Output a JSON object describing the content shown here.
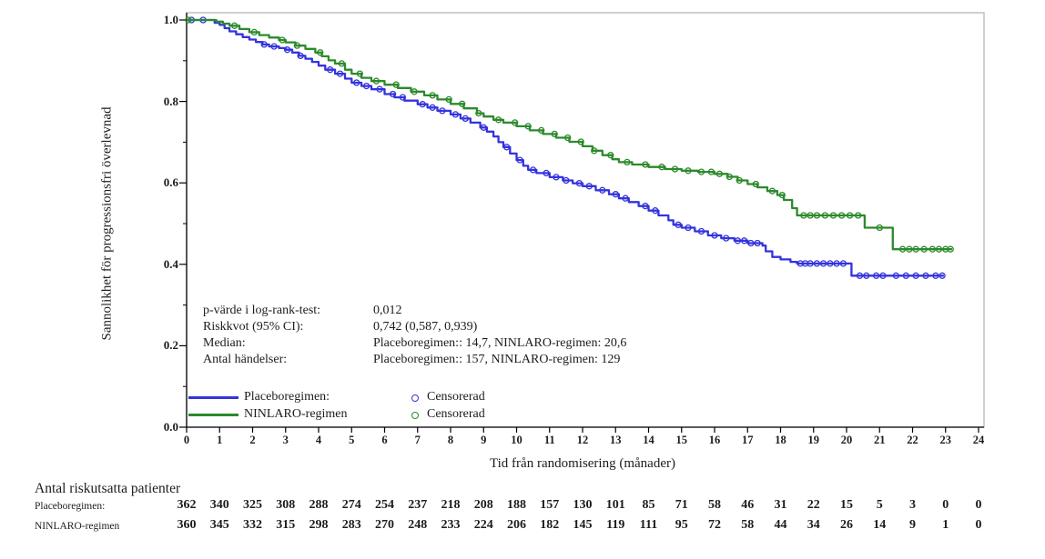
{
  "figure": {
    "y_axis_label": "Sannolikhet för progressionsfri överlevnad",
    "x_axis_label": "Tid från randomisering (månader)"
  },
  "stats": {
    "rows": [
      {
        "label": "p-värde i log-rank-test:",
        "value": "0,012"
      },
      {
        "label": "Riskkvot (95% CI):",
        "value": "0,742 (0,587, 0,939)"
      },
      {
        "label": "Median:",
        "value": "Placeboregimen:: 14,7, NINLARO-regimen: 20,6"
      },
      {
        "label": "Antal händelser:",
        "value": "Placeboregimen:: 157, NINLARO-regimen: 129"
      }
    ]
  },
  "legend": {
    "series": [
      {
        "label": "Placeboregimen:",
        "color": "#3333dd"
      },
      {
        "label": "NINLARO-regimen",
        "color": "#2b8a2b"
      }
    ],
    "censored": [
      {
        "label": "Censorerad",
        "color": "#3333dd"
      },
      {
        "label": "Censorerad",
        "color": "#2b8a2b"
      }
    ]
  },
  "chart_data": {
    "type": "line",
    "subtype": "kaplan-meier-step",
    "xlabel": "Tid från randomisering (månader)",
    "ylabel": "Sannolikhet för progressionsfri överlevnad",
    "x_range": [
      0,
      24
    ],
    "y_range": [
      0.0,
      1.0
    ],
    "x_ticks": [
      0,
      1,
      2,
      3,
      4,
      5,
      6,
      7,
      8,
      9,
      10,
      11,
      12,
      13,
      14,
      15,
      16,
      17,
      18,
      19,
      20,
      21,
      22,
      23,
      24
    ],
    "y_ticks": [
      0.0,
      0.2,
      0.4,
      0.6,
      0.8,
      1.0
    ],
    "y_minor_ticks": [
      0.1,
      0.3,
      0.5,
      0.7,
      0.9
    ],
    "grid": false,
    "legend_position": "inside-bottom-left",
    "p_value": 0.012,
    "hazard_ratio": 0.742,
    "hr_ci_95": [
      0.587,
      0.939
    ],
    "medians": {
      "Placeboregimen": 14.7,
      "NINLARO-regimen": 20.6
    },
    "events": {
      "Placeboregimen": 157,
      "NINLARO-regimen": 129
    },
    "series": [
      {
        "name": "Placeboregimen",
        "color": "#3333dd",
        "end_x": 22.95,
        "points": [
          [
            0,
            1.0
          ],
          [
            0.85,
            0.993
          ],
          [
            1.0,
            0.988
          ],
          [
            1.15,
            0.98
          ],
          [
            1.3,
            0.972
          ],
          [
            1.5,
            0.965
          ],
          [
            1.7,
            0.958
          ],
          [
            1.9,
            0.952
          ],
          [
            2.1,
            0.946
          ],
          [
            2.3,
            0.94
          ],
          [
            2.5,
            0.935
          ],
          [
            2.8,
            0.931
          ],
          [
            3.0,
            0.927
          ],
          [
            3.2,
            0.92
          ],
          [
            3.4,
            0.912
          ],
          [
            3.6,
            0.905
          ],
          [
            3.8,
            0.897
          ],
          [
            4.0,
            0.888
          ],
          [
            4.2,
            0.878
          ],
          [
            4.5,
            0.868
          ],
          [
            4.8,
            0.856
          ],
          [
            5.0,
            0.846
          ],
          [
            5.3,
            0.838
          ],
          [
            5.6,
            0.83
          ],
          [
            6.0,
            0.818
          ],
          [
            6.3,
            0.81
          ],
          [
            6.6,
            0.802
          ],
          [
            7.0,
            0.793
          ],
          [
            7.3,
            0.785
          ],
          [
            7.6,
            0.777
          ],
          [
            8.0,
            0.768
          ],
          [
            8.3,
            0.758
          ],
          [
            8.6,
            0.748
          ],
          [
            8.9,
            0.736
          ],
          [
            9.1,
            0.726
          ],
          [
            9.3,
            0.714
          ],
          [
            9.45,
            0.7
          ],
          [
            9.6,
            0.688
          ],
          [
            9.8,
            0.672
          ],
          [
            10.0,
            0.656
          ],
          [
            10.2,
            0.642
          ],
          [
            10.35,
            0.632
          ],
          [
            10.6,
            0.624
          ],
          [
            11.0,
            0.614
          ],
          [
            11.4,
            0.606
          ],
          [
            11.7,
            0.599
          ],
          [
            12.0,
            0.592
          ],
          [
            12.4,
            0.582
          ],
          [
            12.8,
            0.572
          ],
          [
            13.1,
            0.562
          ],
          [
            13.4,
            0.553
          ],
          [
            13.7,
            0.543
          ],
          [
            14.0,
            0.532
          ],
          [
            14.3,
            0.52
          ],
          [
            14.6,
            0.508
          ],
          [
            14.75,
            0.497
          ],
          [
            15.0,
            0.49
          ],
          [
            15.4,
            0.481
          ],
          [
            15.8,
            0.471
          ],
          [
            16.2,
            0.464
          ],
          [
            16.6,
            0.458
          ],
          [
            17.0,
            0.452
          ],
          [
            17.45,
            0.446
          ],
          [
            17.55,
            0.432
          ],
          [
            17.75,
            0.418
          ],
          [
            18.0,
            0.412
          ],
          [
            18.3,
            0.406
          ],
          [
            18.5,
            0.402
          ],
          [
            20.15,
            0.372
          ]
        ],
        "censored_x": [
          0.15,
          0.5,
          2.35,
          2.65,
          3.05,
          3.45,
          4.35,
          4.65,
          5.15,
          5.45,
          5.85,
          6.25,
          6.55,
          7.15,
          7.45,
          7.75,
          8.15,
          8.45,
          9.0,
          9.7,
          10.1,
          10.5,
          10.9,
          11.2,
          11.5,
          11.9,
          12.2,
          12.6,
          13.0,
          13.3,
          13.9,
          14.2,
          14.9,
          15.2,
          15.6,
          16.0,
          16.35,
          16.7,
          16.9,
          17.1,
          17.3,
          18.6,
          18.75,
          18.9,
          19.1,
          19.3,
          19.5,
          19.7,
          19.9,
          20.4,
          20.6,
          20.9,
          21.1,
          21.5,
          21.8,
          22.1,
          22.4,
          22.7,
          22.9
        ]
      },
      {
        "name": "NINLARO-regimen",
        "color": "#2b8a2b",
        "end_x": 23.2,
        "points": [
          [
            0,
            1.0
          ],
          [
            0.9,
            0.996
          ],
          [
            1.1,
            0.991
          ],
          [
            1.3,
            0.986
          ],
          [
            1.6,
            0.978
          ],
          [
            1.9,
            0.97
          ],
          [
            2.2,
            0.963
          ],
          [
            2.5,
            0.957
          ],
          [
            2.8,
            0.951
          ],
          [
            3.0,
            0.945
          ],
          [
            3.3,
            0.937
          ],
          [
            3.6,
            0.929
          ],
          [
            3.9,
            0.92
          ],
          [
            4.1,
            0.911
          ],
          [
            4.3,
            0.901
          ],
          [
            4.5,
            0.893
          ],
          [
            4.8,
            0.878
          ],
          [
            5.0,
            0.868
          ],
          [
            5.3,
            0.858
          ],
          [
            5.6,
            0.85
          ],
          [
            6.0,
            0.841
          ],
          [
            6.4,
            0.833
          ],
          [
            6.8,
            0.824
          ],
          [
            7.2,
            0.815
          ],
          [
            7.6,
            0.805
          ],
          [
            8.0,
            0.794
          ],
          [
            8.4,
            0.783
          ],
          [
            8.8,
            0.771
          ],
          [
            9.0,
            0.763
          ],
          [
            9.3,
            0.755
          ],
          [
            9.6,
            0.748
          ],
          [
            10.0,
            0.739
          ],
          [
            10.4,
            0.729
          ],
          [
            10.8,
            0.72
          ],
          [
            11.2,
            0.711
          ],
          [
            11.6,
            0.701
          ],
          [
            12.0,
            0.69
          ],
          [
            12.3,
            0.679
          ],
          [
            12.6,
            0.668
          ],
          [
            12.9,
            0.658
          ],
          [
            13.1,
            0.651
          ],
          [
            13.5,
            0.645
          ],
          [
            14.0,
            0.639
          ],
          [
            14.5,
            0.634
          ],
          [
            15.0,
            0.63
          ],
          [
            15.5,
            0.627
          ],
          [
            16.0,
            0.622
          ],
          [
            16.4,
            0.615
          ],
          [
            16.7,
            0.606
          ],
          [
            17.0,
            0.597
          ],
          [
            17.3,
            0.589
          ],
          [
            17.6,
            0.58
          ],
          [
            17.9,
            0.57
          ],
          [
            18.1,
            0.558
          ],
          [
            18.35,
            0.538
          ],
          [
            18.5,
            0.52
          ],
          [
            20.55,
            0.49
          ],
          [
            21.4,
            0.437
          ]
        ],
        "censored_x": [
          0.05,
          1.45,
          2.05,
          2.9,
          3.35,
          4.05,
          4.7,
          5.25,
          5.75,
          6.35,
          6.9,
          7.45,
          7.95,
          8.35,
          8.85,
          9.45,
          9.95,
          10.35,
          10.75,
          11.15,
          11.55,
          11.95,
          12.35,
          12.85,
          13.35,
          13.9,
          14.4,
          14.8,
          15.2,
          15.6,
          15.9,
          16.15,
          16.45,
          16.75,
          17.25,
          17.75,
          18.05,
          18.7,
          18.9,
          19.1,
          19.35,
          19.6,
          19.85,
          20.1,
          20.35,
          21.0,
          21.7,
          21.9,
          22.1,
          22.35,
          22.6,
          22.8,
          23.0,
          23.15
        ]
      }
    ],
    "risk_table": {
      "title": "Antal riskutsatta patienter",
      "months": [
        0,
        1,
        2,
        3,
        4,
        5,
        6,
        7,
        8,
        9,
        10,
        11,
        12,
        13,
        14,
        15,
        16,
        17,
        18,
        19,
        20,
        21,
        22,
        23,
        24
      ],
      "rows": [
        {
          "label": "Placeboregimen:",
          "counts": [
            362,
            340,
            325,
            308,
            288,
            274,
            254,
            237,
            218,
            208,
            188,
            157,
            130,
            101,
            85,
            71,
            58,
            46,
            31,
            22,
            15,
            5,
            3,
            0,
            0
          ]
        },
        {
          "label": "NINLARO-regimen",
          "counts": [
            360,
            345,
            332,
            315,
            298,
            283,
            270,
            248,
            233,
            224,
            206,
            182,
            145,
            119,
            111,
            95,
            72,
            58,
            44,
            34,
            26,
            14,
            9,
            1,
            0
          ]
        }
      ]
    }
  }
}
